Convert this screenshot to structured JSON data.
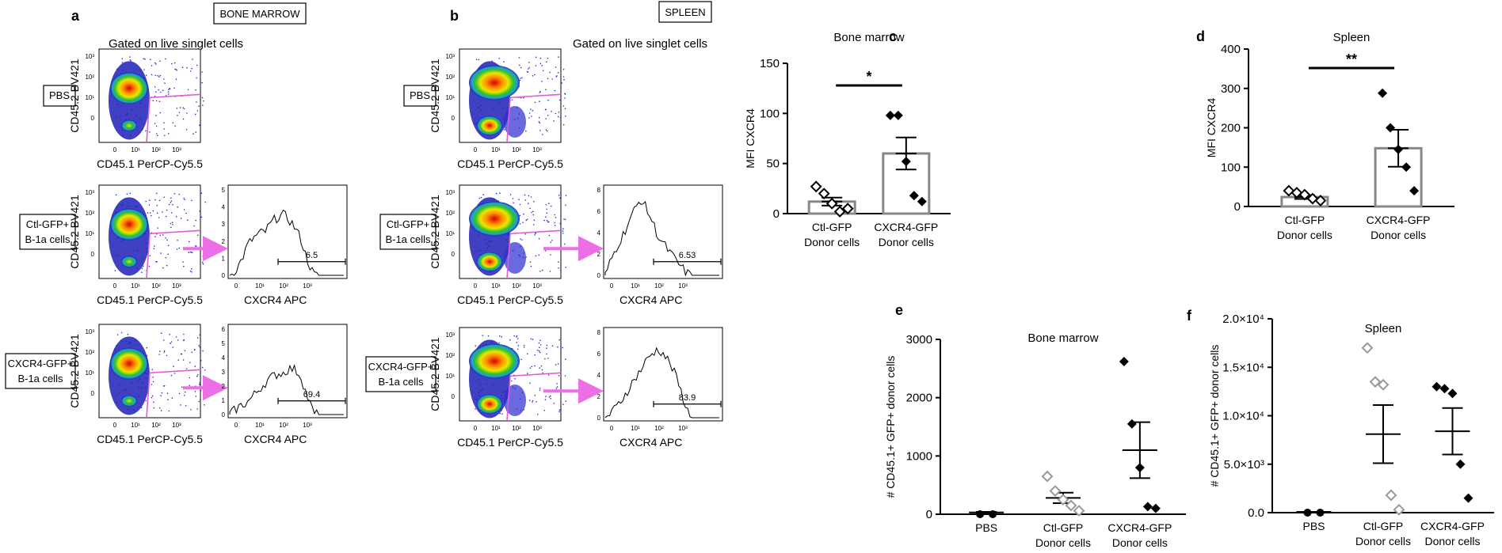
{
  "panels": {
    "a": {
      "letter": "a",
      "section_title": "BONE MARROW",
      "gate_note": "Gated on live singlet cells",
      "rows": [
        {
          "label": [
            "PBS"
          ]
        },
        {
          "label": [
            "Ctl-GFP+",
            "B-1a cells"
          ],
          "hist_value": "6.5"
        },
        {
          "label": [
            "CXCR4-GFP+",
            "B-1a cells"
          ],
          "hist_value": "69.4"
        }
      ],
      "y_label": "CD45.2 BV421",
      "x_label": "CD45.1 PerCP-Cy5.5",
      "hist_x_label": "CXCR4 APC"
    },
    "b": {
      "letter": "b",
      "section_title": "SPLEEN",
      "gate_note": "Gated on live singlet cells",
      "rows": [
        {
          "label": [
            "PBS"
          ]
        },
        {
          "label": [
            "Ctl-GFP+",
            "B-1a cells"
          ],
          "hist_value": "6.53"
        },
        {
          "label": [
            "CXCR4-GFP+",
            "B-1a cells"
          ],
          "hist_value": "83.9"
        }
      ],
      "y_label": "CD45.2 BV421",
      "x_label": "CD45.1 PerCP-Cy5.5",
      "hist_x_label": "CXCR4 APC"
    }
  },
  "flow_ticks": {
    "y": [
      "10³",
      "10²",
      "10¹",
      "0"
    ],
    "x": [
      "0",
      "10¹",
      "10²",
      "10³"
    ]
  },
  "hist_ticks": {
    "a_row2": [
      "5",
      "4",
      "3",
      "2",
      "1",
      "0"
    ],
    "a_row3": [
      "6",
      "5",
      "4",
      "3",
      "2",
      "1",
      "0"
    ],
    "b_row2": [
      "8",
      "6",
      "4",
      "2",
      "0"
    ],
    "b_row3": [
      "8",
      "6",
      "4",
      "2",
      "0"
    ],
    "x": [
      "0",
      "10¹",
      "10²",
      "10³"
    ]
  },
  "chart_data": [
    {
      "panel": "c",
      "type": "bar",
      "title": "Bone marrow",
      "ylabel": "MFI CXCR4",
      "ylim": [
        0,
        150
      ],
      "yticks": [
        "0",
        "50",
        "100",
        "150"
      ],
      "categories": [
        [
          "Ctl-GFP",
          "Donor cells"
        ],
        [
          "CXCR4-GFP",
          "Donor cells"
        ]
      ],
      "means": [
        12,
        60
      ],
      "sem": [
        4,
        16
      ],
      "points": [
        [
          27,
          20,
          10,
          2,
          5
        ],
        [
          98,
          98,
          52,
          18,
          12
        ]
      ],
      "significance": "*"
    },
    {
      "panel": "d",
      "type": "bar",
      "title": "Spleen",
      "ylabel": "MFI CXCR4",
      "ylim": [
        0,
        400
      ],
      "yticks": [
        "0",
        "100",
        "200",
        "300",
        "400"
      ],
      "categories": [
        [
          "Ctl-GFP",
          "Donor cells"
        ],
        [
          "CXCR4-GFP",
          "Donor cells"
        ]
      ],
      "means": [
        24,
        148
      ],
      "sem": [
        5,
        47
      ],
      "points": [
        [
          40,
          35,
          30,
          20,
          15
        ],
        [
          288,
          200,
          145,
          100,
          40
        ]
      ],
      "significance": "**"
    },
    {
      "panel": "e",
      "type": "scatter",
      "title": "Bone marrow",
      "ylabel": "# CD45.1+ GFP+ donor cells",
      "ylim": [
        0,
        3000
      ],
      "yticks": [
        "0",
        "1000",
        "2000",
        "3000"
      ],
      "categories": [
        [
          "PBS"
        ],
        [
          "Ctl-GFP",
          "Donor cells"
        ],
        [
          "CXCR4-GFP",
          "Donor cells"
        ]
      ],
      "means": [
        30,
        280,
        1100
      ],
      "sem": [
        10,
        90,
        480
      ],
      "points": [
        [
          20,
          35
        ],
        [
          650,
          400,
          250,
          150,
          60
        ],
        [
          2620,
          1550,
          800,
          130,
          100
        ]
      ]
    },
    {
      "panel": "f",
      "type": "scatter",
      "title": "Spleen",
      "ylabel": "# CD45.1+ GFP+ donor cells",
      "ylim": [
        0,
        20000
      ],
      "yticks": [
        "0.0",
        "5.0×10³",
        "1.0×10⁴",
        "1.5×10⁴",
        "2.0×10⁴"
      ],
      "categories": [
        [
          "PBS"
        ],
        [
          "Ctl-GFP",
          "Donor cells"
        ],
        [
          "CXCR4-GFP",
          "Donor cells"
        ]
      ],
      "means": [
        0,
        8100,
        8400
      ],
      "sem": [
        0,
        3000,
        2400
      ],
      "points": [
        [
          0,
          0
        ],
        [
          17000,
          13500,
          13200,
          1800,
          300
        ],
        [
          13000,
          12800,
          12300,
          5000,
          1500
        ]
      ]
    }
  ],
  "colors": {
    "gate": "#e05cd8",
    "arrow": "#ec6fe6",
    "bar": "#888888",
    "open_marker": "#000000",
    "grey_marker": "#999999"
  }
}
